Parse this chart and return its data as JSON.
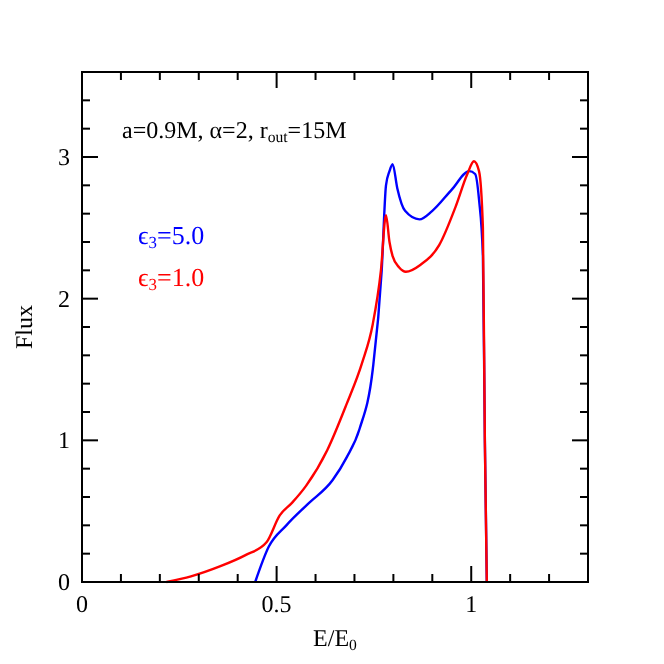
{
  "chart_data": {
    "type": "line",
    "xlabel": "E/E$_{0}$",
    "ylabel": "Flux",
    "annotations": [
      "a=0.9M, α=2, r$_{out}$=15M"
    ],
    "xlim": [
      0,
      1.3
    ],
    "ylim": [
      0,
      3.6
    ],
    "xticks": [
      0,
      {
        "value": 0.1,
        "label": null
      },
      {
        "value": 0.2,
        "label": null
      },
      {
        "value": 0.3,
        "label": null
      },
      {
        "value": 0.4,
        "label": null
      },
      0.5,
      {
        "value": 0.6,
        "label": null
      },
      {
        "value": 0.7,
        "label": null
      },
      {
        "value": 0.8,
        "label": null
      },
      {
        "value": 0.9,
        "label": null
      },
      1,
      {
        "value": 1.1,
        "label": null
      },
      {
        "value": 1.2,
        "label": null
      }
    ],
    "yticks": [
      0,
      {
        "value": 0.2,
        "label": null
      },
      {
        "value": 0.4,
        "label": null
      },
      {
        "value": 0.6,
        "label": null
      },
      {
        "value": 0.8,
        "label": null
      },
      1,
      {
        "value": 1.2,
        "label": null
      },
      {
        "value": 1.4,
        "label": null
      },
      {
        "value": 1.6,
        "label": null
      },
      {
        "value": 1.8,
        "label": null
      },
      2,
      {
        "value": 2.2,
        "label": null
      },
      {
        "value": 2.4,
        "label": null
      },
      {
        "value": 2.6,
        "label": null
      },
      {
        "value": 2.8,
        "label": null
      },
      3,
      {
        "value": 3.2,
        "label": null
      },
      {
        "value": 3.4,
        "label": null
      }
    ],
    "grid": false,
    "legend": "top left",
    "line_style": "solid",
    "series": [
      {
        "name": "ϵ$_{3}$=5.0",
        "color": "#0000ff",
        "x": [
          0.445,
          0.48,
          0.525,
          0.58,
          0.644,
          0.68,
          0.713,
          0.747,
          0.77,
          0.781,
          0.79,
          0.798,
          0.81,
          0.83,
          0.867,
          0.9,
          0.95,
          0.995,
          1.01,
          1.02,
          1.03,
          1.035,
          1.04
        ],
        "values": [
          0,
          0.25,
          0.4,
          0.55,
          0.72,
          0.88,
          1.08,
          1.5,
          2.2,
          2.8,
          2.9,
          2.95,
          2.78,
          2.62,
          2.56,
          2.62,
          2.77,
          2.9,
          2.88,
          2.7,
          2.3,
          1.0,
          0
        ]
      },
      {
        "name": "ϵ$_{3}$=1.0",
        "color": "#ff0000",
        "x": [
          0.217,
          0.28,
          0.354,
          0.42,
          0.474,
          0.508,
          0.54,
          0.576,
          0.63,
          0.679,
          0.72,
          0.747,
          0.768,
          0.781,
          0.79,
          0.798,
          0.815,
          0.832,
          0.87,
          0.918,
          0.96,
          0.99,
          1.007,
          1.02,
          1.03,
          1.035,
          1.04
        ],
        "values": [
          0,
          0.04,
          0.11,
          0.19,
          0.28,
          0.47,
          0.56,
          0.68,
          0.93,
          1.25,
          1.55,
          1.82,
          2.2,
          2.59,
          2.4,
          2.3,
          2.22,
          2.19,
          2.24,
          2.38,
          2.65,
          2.88,
          2.97,
          2.9,
          2.5,
          1.0,
          0
        ]
      }
    ]
  }
}
